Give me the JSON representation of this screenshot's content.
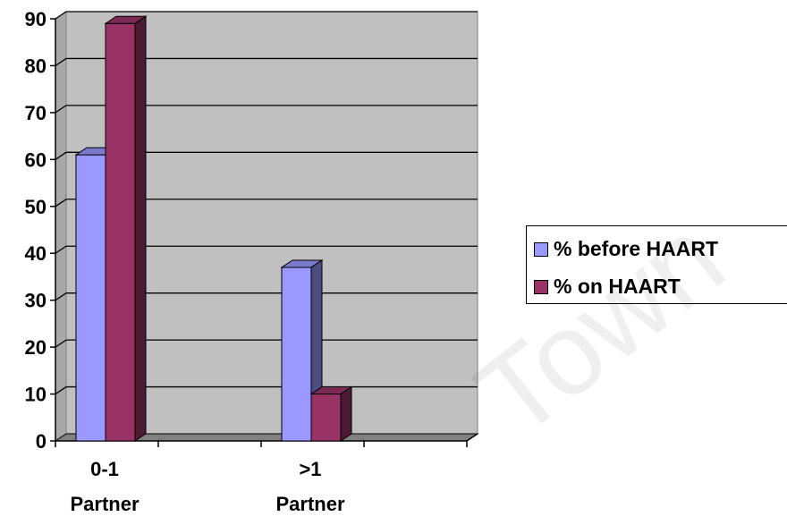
{
  "chart_data": {
    "type": "bar",
    "categories": [
      "0-1 Partner",
      ">1 Partner"
    ],
    "category_lines": [
      [
        "0-1",
        "Partner"
      ],
      [
        ">1",
        "Partner"
      ]
    ],
    "series": [
      {
        "name": "% before HAART",
        "values": [
          61,
          37
        ],
        "color": "#9999ff"
      },
      {
        "name": "% on HAART",
        "values": [
          89,
          10
        ],
        "color": "#993366"
      }
    ],
    "ylim": [
      0,
      90
    ],
    "yticks": [
      0,
      10,
      20,
      30,
      40,
      50,
      60,
      70,
      80,
      90
    ],
    "grid": true,
    "legend": "right",
    "plot_background": "#c0c0c0"
  },
  "watermark": "Town"
}
